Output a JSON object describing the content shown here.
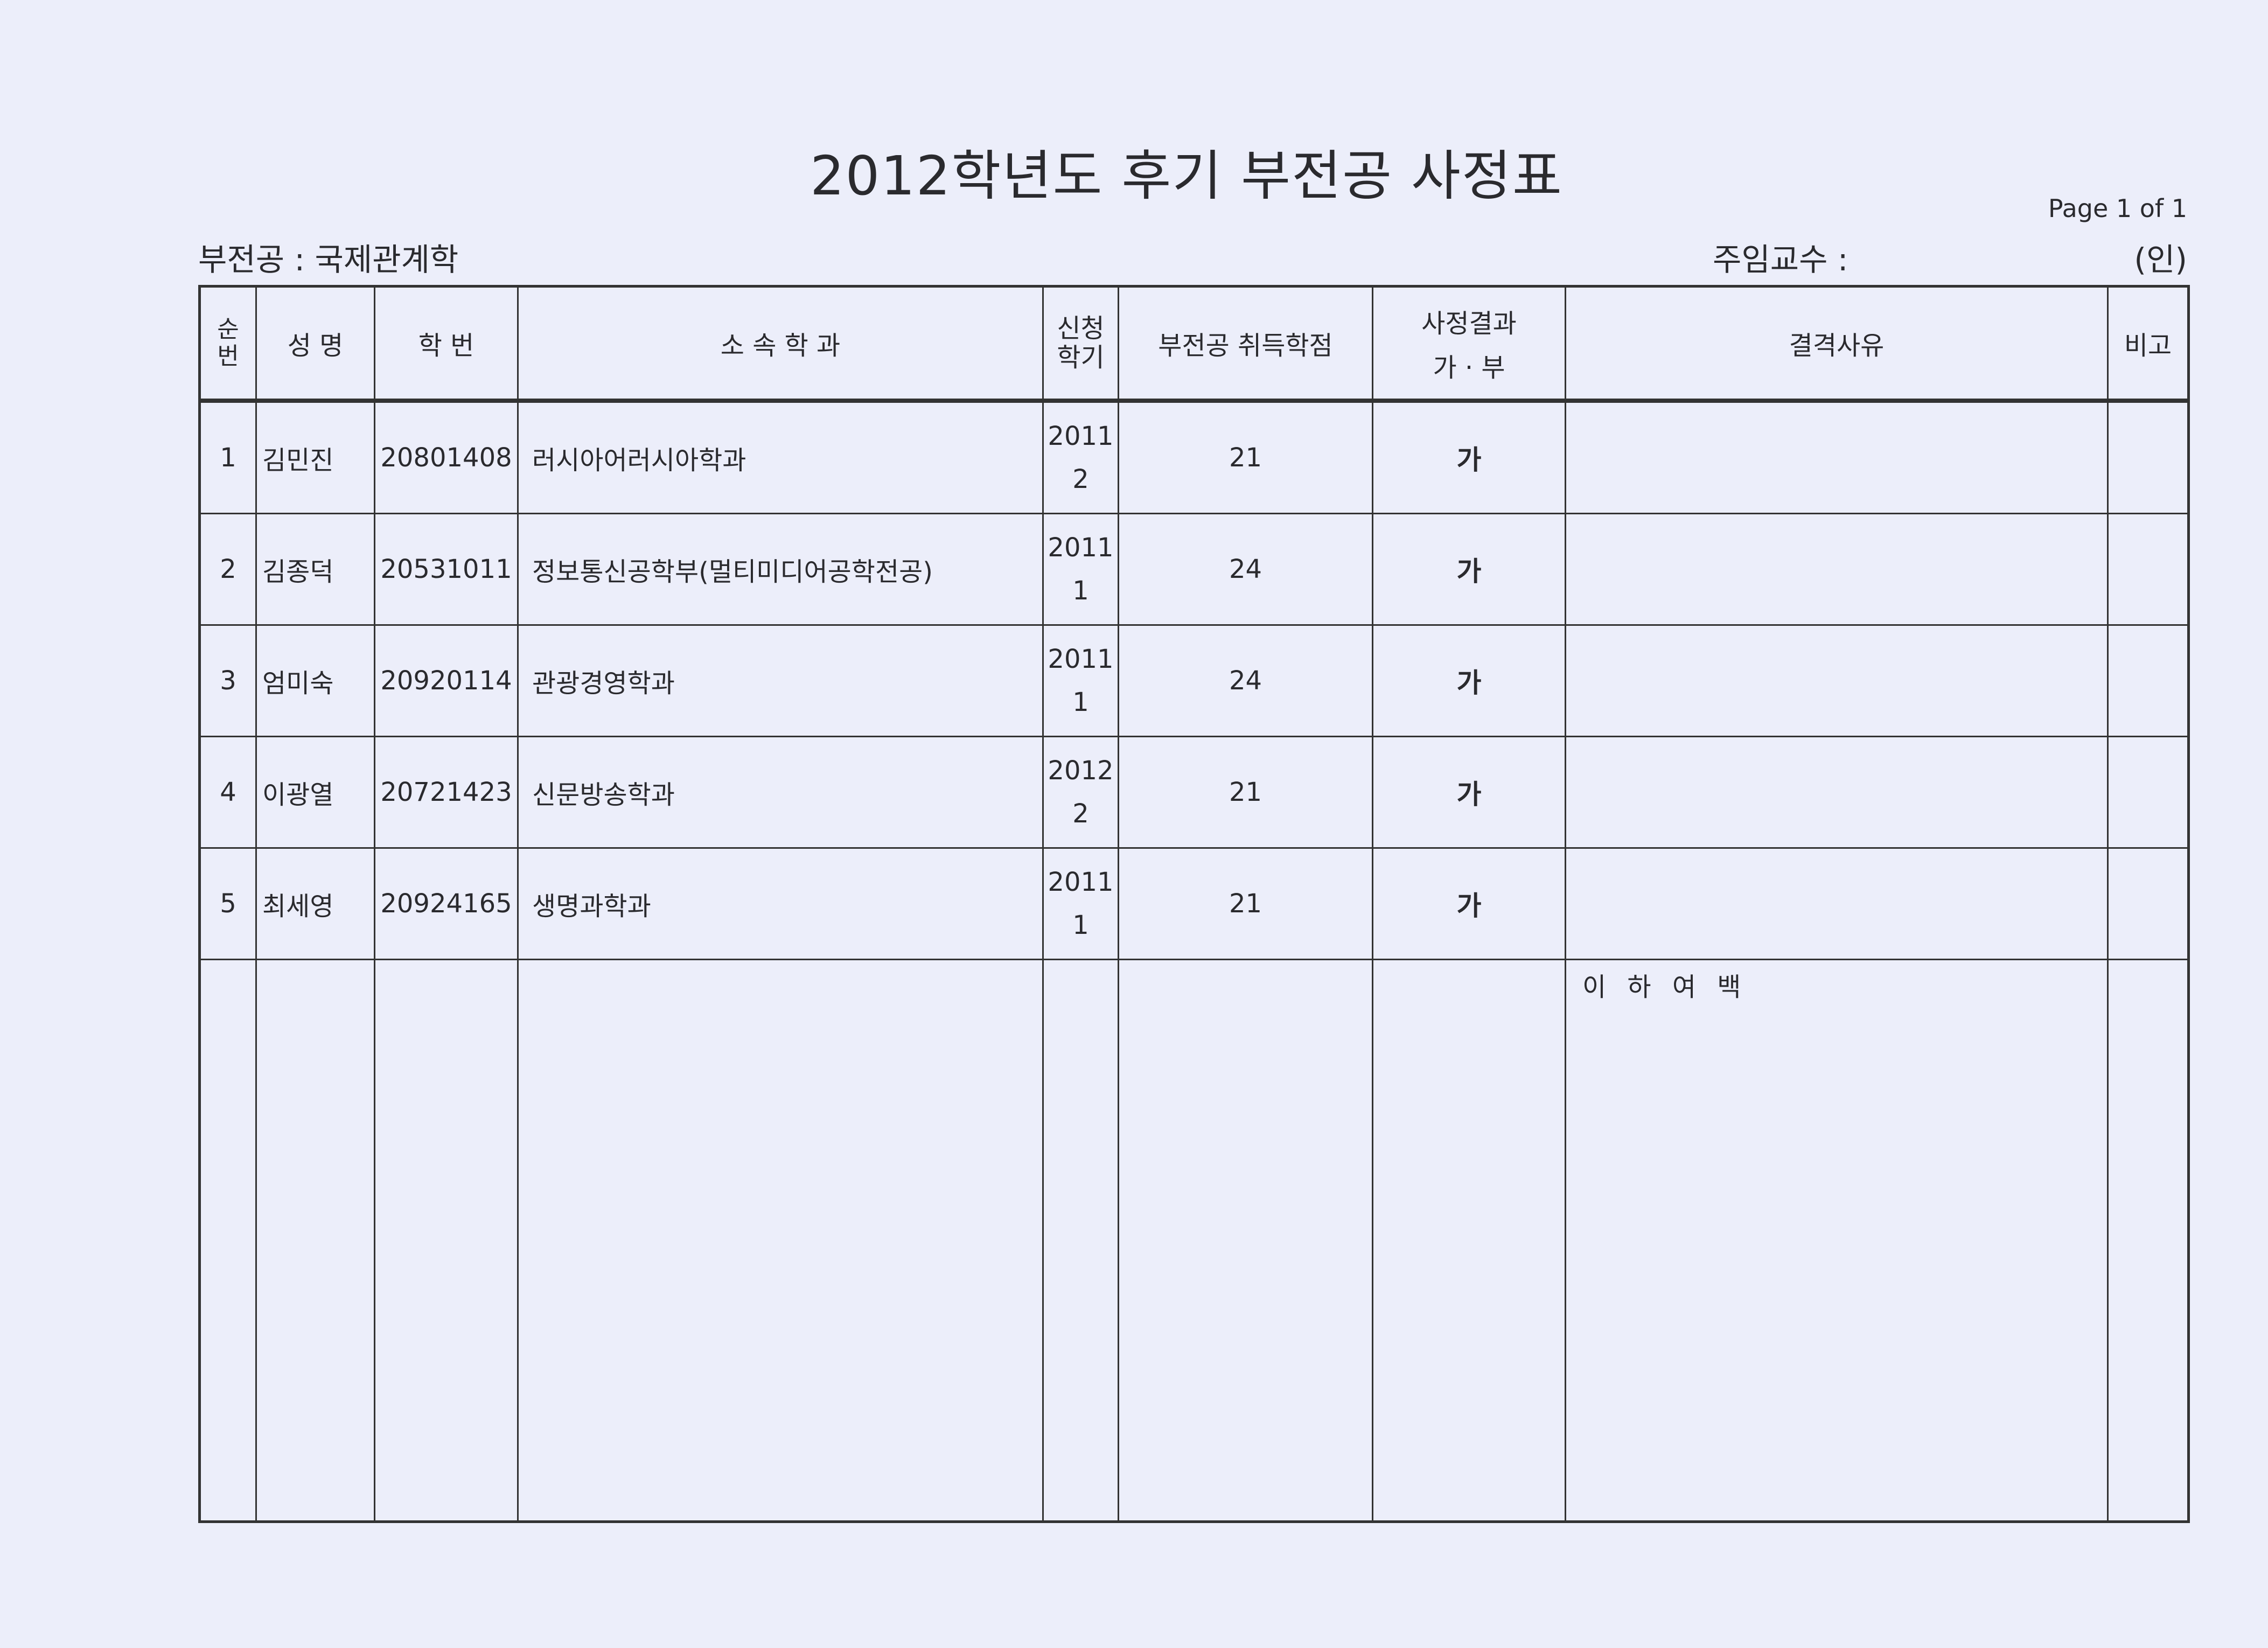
{
  "title": "2012학년도 후기   부전공 사정표",
  "page_info": "Page 1 of 1",
  "major_label": "부전공 : 국제관계학",
  "professor_label": "주임교수 :",
  "seal_label": "(인)",
  "table": {
    "headers": {
      "no": "순번",
      "name": "성 명",
      "student_id": "학 번",
      "department": "소 속 학 과",
      "semester": "신청 학기",
      "credits": "부전공 취득학점",
      "result": "사정결과",
      "result_sub": "가 · 부",
      "reason": "결격사유",
      "note": "비고"
    },
    "rows": [
      {
        "no": "1",
        "name": "김민진",
        "student_id": "20801408",
        "department": "러시아어러시아학과",
        "year": "2011",
        "term": "2",
        "credits": "21",
        "result": "가",
        "reason": "",
        "note": ""
      },
      {
        "no": "2",
        "name": "김종덕",
        "student_id": "20531011",
        "department": "정보통신공학부(멀티미디어공학전공)",
        "year": "2011",
        "term": "1",
        "credits": "24",
        "result": "가",
        "reason": "",
        "note": ""
      },
      {
        "no": "3",
        "name": "엄미숙",
        "student_id": "20920114",
        "department": "관광경영학과",
        "year": "2011",
        "term": "1",
        "credits": "24",
        "result": "가",
        "reason": "",
        "note": ""
      },
      {
        "no": "4",
        "name": "이광열",
        "student_id": "20721423",
        "department": "신문방송학과",
        "year": "2012",
        "term": "2",
        "credits": "21",
        "result": "가",
        "reason": "",
        "note": ""
      },
      {
        "no": "5",
        "name": "최세영",
        "student_id": "20924165",
        "department": "생명과학과",
        "year": "2011",
        "term": "1",
        "credits": "21",
        "result": "가",
        "reason": "",
        "note": ""
      }
    ],
    "blank_text": "이 하 여 백"
  }
}
